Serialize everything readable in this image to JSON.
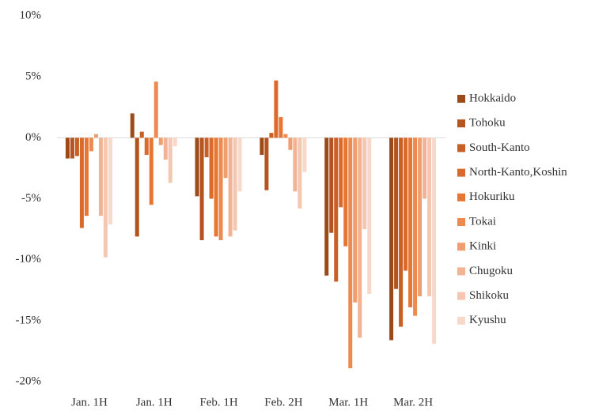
{
  "chart_data": {
    "type": "bar",
    "categories": [
      "Jan. 1H",
      "Jan. 1H",
      "Feb. 1H",
      "Feb. 2H",
      "Mar. 1H",
      "Mar. 2H"
    ],
    "series": [
      {
        "name": "Hokkaido",
        "color": "#9c4a1a",
        "values": [
          -1.7,
          2.0,
          -4.8,
          -1.4,
          -11.3,
          -16.6
        ]
      },
      {
        "name": "Tohoku",
        "color": "#b5541f",
        "values": [
          -1.7,
          -8.1,
          -8.4,
          -4.3,
          -7.8,
          -12.4
        ]
      },
      {
        "name": "South-Kanto",
        "color": "#c85f24",
        "values": [
          -1.5,
          0.5,
          -1.6,
          0.4,
          -11.8,
          -15.5
        ]
      },
      {
        "name": "North-Kanto,Koshin",
        "color": "#d96a2b",
        "values": [
          -7.4,
          -1.4,
          -5.0,
          4.7,
          -5.7,
          -10.9
        ]
      },
      {
        "name": "Hokuriku",
        "color": "#e87633",
        "values": [
          -6.4,
          -5.5,
          -8.1,
          1.7,
          -8.9,
          -13.9
        ]
      },
      {
        "name": "Tokai",
        "color": "#ec8a4f",
        "values": [
          -1.1,
          4.6,
          -8.4,
          0.3,
          -18.9,
          -14.6
        ]
      },
      {
        "name": "Kinki",
        "color": "#ef9e6f",
        "values": [
          0.3,
          -0.6,
          -3.3,
          -1.0,
          -13.5,
          -13.0
        ]
      },
      {
        "name": "Chugoku",
        "color": "#f2b393",
        "values": [
          -6.4,
          -1.8,
          -8.1,
          -4.4,
          -16.4,
          -5.0
        ]
      },
      {
        "name": "Shikoku",
        "color": "#f5c7b0",
        "values": [
          -9.8,
          -3.7,
          -7.6,
          -5.8,
          -7.5,
          -13.0
        ]
      },
      {
        "name": "Kyushu",
        "color": "#f8d8c8",
        "values": [
          -7.1,
          -0.7,
          -4.4,
          -2.8,
          -12.8,
          -16.9
        ]
      }
    ],
    "ylim": [
      -20,
      10
    ],
    "yticks": [
      {
        "value": -20,
        "label": "-20%"
      },
      {
        "value": -15,
        "label": "-15%"
      },
      {
        "value": -10,
        "label": "-10%"
      },
      {
        "value": -5,
        "label": "-5%"
      },
      {
        "value": 0,
        "label": "0%"
      },
      {
        "value": 5,
        "label": "5%"
      },
      {
        "value": 10,
        "label": "10%"
      }
    ],
    "grid": false,
    "legend": "right"
  }
}
